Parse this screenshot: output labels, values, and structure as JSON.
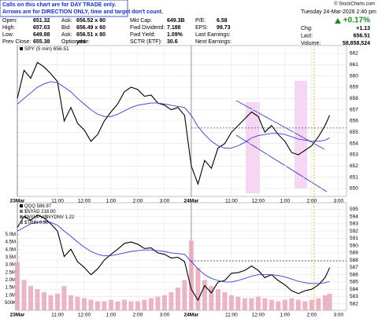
{
  "header": {
    "note": [
      "Calls on this chart are for DAY TRADE only.",
      "Arrows are for DIRECTION ONLY, time and target don't count."
    ],
    "copyright": "© StockCharts.com",
    "rows": [
      [
        [
          "Open:",
          "651.32"
        ],
        [
          "Ask:",
          "656.52 x 80"
        ],
        [
          "Mkt Cap:",
          "649.3B"
        ],
        [
          "P/E:",
          "6.58"
        ]
      ],
      [
        [
          "High:",
          "657.03"
        ],
        [
          "Bid:",
          "656.49 x 60"
        ],
        [
          "Fwd Dividend:",
          "7.188"
        ],
        [
          "EPS:",
          "99.73"
        ]
      ],
      [
        [
          "Low:",
          "649.88"
        ],
        [
          "Ask:",
          "656.51 x 80"
        ],
        [
          "Fwd Yield:",
          "1.09%"
        ],
        [
          "Last Earnings:"
        ]
      ],
      [
        [
          "Prev Close:",
          "655.38"
        ],
        [
          "Optionable:",
          "yes"
        ],
        [
          "SCTR (ETF):",
          "30.6"
        ],
        [
          "Next Earnings:"
        ]
      ]
    ],
    "date": "Tuesday  24-Mar-2026  2:40 pm",
    "change_pct": "+0.17%",
    "side": [
      [
        "Chg:",
        "+1.13"
      ],
      [
        "Last:",
        "656.51"
      ],
      [
        "Volume:",
        "58,858,524"
      ]
    ]
  },
  "chart_data": [
    {
      "type": "line",
      "title": "SPY (5 min) 656.51",
      "x": [
        0,
        0.25,
        0.5,
        0.75,
        1,
        1.25,
        1.5,
        1.75,
        2,
        2.25,
        2.5,
        2.75,
        3,
        3.25,
        3.5,
        3.75,
        4,
        4.25,
        4.5,
        4.75,
        5,
        5.25,
        5.5,
        5.75,
        6,
        6.25,
        6.5,
        6.75,
        7,
        7.25,
        7.5,
        7.75,
        8,
        8.25,
        8.5,
        8.75,
        9,
        9.25,
        9.5,
        9.75,
        10,
        10.25,
        10.5,
        10.75,
        11,
        11.25,
        11.5,
        11.67
      ],
      "xlim": [
        0,
        12.3
      ],
      "xticks": [
        {
          "value": 0,
          "label": "23Mar"
        },
        {
          "value": 1.5,
          "label": "11:00"
        },
        {
          "value": 2.5,
          "label": "12:00"
        },
        {
          "value": 3.5,
          "label": "1:00"
        },
        {
          "value": 4.5,
          "label": "2:00"
        },
        {
          "value": 5.5,
          "label": "3:00"
        },
        {
          "value": 6.5,
          "label": "24Mar"
        },
        {
          "value": 8,
          "label": "11:00"
        },
        {
          "value": 9,
          "label": "12:00"
        },
        {
          "value": 10,
          "label": "1:00"
        },
        {
          "value": 11,
          "label": "2:00"
        },
        {
          "value": 12,
          "label": "3:00"
        }
      ],
      "ylim": [
        649.3,
        662.7
      ],
      "yticks": [
        650,
        651,
        652,
        653,
        654,
        655,
        656,
        657,
        658,
        659,
        660,
        661,
        662
      ],
      "grid": true,
      "hlines": [
        655.38
      ],
      "series": [
        {
          "name": "SPY",
          "color": "#000000",
          "values": [
            658.0,
            660.5,
            659.8,
            661.2,
            660.8,
            660.2,
            659.5,
            656.0,
            657.2,
            655.8,
            655.2,
            654.2,
            654.8,
            656.0,
            656.8,
            657.5,
            658.6,
            659.0,
            658.8,
            658.2,
            658.3,
            657.6,
            657.4,
            657.0,
            657.2,
            656.5,
            652.0,
            650.4,
            652.5,
            651.8,
            653.6,
            654.0,
            655.0,
            655.6,
            656.2,
            656.8,
            656.4,
            655.0,
            655.6,
            654.8,
            654.2,
            653.2,
            653.0,
            653.4,
            653.8,
            654.6,
            655.6,
            656.51
          ]
        },
        {
          "color": "#3a3ad0",
          "values": [
            657.5,
            658,
            658.5,
            659,
            659.3,
            659.5,
            659.4,
            659,
            658.6,
            658,
            657.5,
            657,
            656.6,
            656.4,
            656.4,
            656.6,
            656.9,
            657.2,
            657.4,
            657.5,
            657.6,
            657.6,
            657.5,
            657.4,
            657.3,
            657.2,
            656.5,
            655.5,
            654.8,
            654.2,
            653.8,
            653.6,
            653.6,
            653.8,
            654.1,
            654.5,
            654.7,
            654.8,
            654.9,
            654.9,
            654.8,
            654.6,
            654.4,
            654.3,
            654.2,
            654.2,
            654.3,
            654.5
          ]
        }
      ]
    },
    {
      "type": "line",
      "legend": [
        "QQQ 586.97",
        "$NYAD 216.00",
        "$NYUPV/$NYDNV 1.22",
        "$TRIN 0.90"
      ],
      "x": [
        0,
        0.25,
        0.5,
        0.75,
        1,
        1.25,
        1.5,
        1.75,
        2,
        2.25,
        2.5,
        2.75,
        3,
        3.25,
        3.5,
        3.75,
        4,
        4.25,
        4.5,
        4.75,
        5,
        5.25,
        5.5,
        5.75,
        6,
        6.25,
        6.5,
        6.75,
        7,
        7.25,
        7.5,
        7.75,
        8,
        8.25,
        8.5,
        8.75,
        9,
        9.25,
        9.5,
        9.75,
        10,
        10.25,
        10.5,
        10.75,
        11,
        11.25,
        11.5,
        11.67
      ],
      "xlim": [
        0,
        12.3
      ],
      "xticks": [
        {
          "value": 0,
          "label": "23Mar"
        },
        {
          "value": 1.5,
          "label": "11:00"
        },
        {
          "value": 2.5,
          "label": "12:00"
        },
        {
          "value": 3.5,
          "label": "1:00"
        },
        {
          "value": 4.5,
          "label": "2:00"
        },
        {
          "value": 5.5,
          "label": "3:00"
        },
        {
          "value": 6.5,
          "label": "24Mar"
        },
        {
          "value": 8,
          "label": "11:00"
        },
        {
          "value": 9,
          "label": "12:00"
        },
        {
          "value": 10,
          "label": "1:00"
        },
        {
          "value": 11,
          "label": "2:00"
        },
        {
          "value": 12,
          "label": "3:00"
        }
      ],
      "ylim": [
        581.1,
        595.9
      ],
      "yticks": [
        582,
        583,
        584,
        585,
        586,
        587,
        588,
        589,
        590,
        591,
        592,
        593,
        594,
        595
      ],
      "grid": true,
      "hlines": [
        587.9
      ],
      "series": [
        {
          "name": "QQQ",
          "color": "#000000",
          "values": [
            592.5,
            594,
            593.5,
            594.2,
            593.8,
            593,
            592,
            588.5,
            589.5,
            587.8,
            587,
            586,
            586.8,
            588,
            588.8,
            589.5,
            590.3,
            590.5,
            590.2,
            589.6,
            589.7,
            589,
            588.8,
            588.3,
            588.4,
            587.8,
            584,
            582.5,
            584.5,
            583.5,
            585,
            585.2,
            586.2,
            586.3,
            586.6,
            587.2,
            586.6,
            585.6,
            586,
            585.2,
            584.6,
            583.8,
            583.4,
            583.8,
            584,
            584.6,
            585.6,
            586.97
          ]
        },
        {
          "color": "#3a3ad0",
          "values": [
            592,
            592.5,
            593,
            593.2,
            593.3,
            593.2,
            592.8,
            592,
            591.3,
            590.5,
            589.8,
            589.2,
            588.8,
            588.6,
            588.6,
            588.8,
            589,
            589.2,
            589.3,
            589.4,
            589.4,
            589.3,
            589.2,
            589,
            588.9,
            588.8,
            587.8,
            586.8,
            586,
            585.5,
            585.2,
            585,
            585,
            585.2,
            585.5,
            585.8,
            586,
            586,
            586,
            585.9,
            585.7,
            585.4,
            585.1,
            584.9,
            584.8,
            584.8,
            584.9,
            585.1
          ]
        }
      ],
      "volume": {
        "color": "#e8a8b8",
        "values": [
          3200000,
          2000000,
          1600000,
          1400000,
          1200000,
          1000000,
          1100000,
          1600000,
          1000000,
          900000,
          800000,
          700000,
          600000,
          600000,
          700000,
          600000,
          700000,
          600000,
          600000,
          700000,
          800000,
          900000,
          1000000,
          1200000,
          1500000,
          2000000,
          4600000,
          2800000,
          2000000,
          1600000,
          1400000,
          1200000,
          1000000,
          900000,
          800000,
          800000,
          900000,
          800000,
          700000,
          600000,
          700000,
          800000,
          700000,
          600000,
          700000,
          800000,
          1000000,
          1100000
        ],
        "ylim": [
          0,
          7100000
        ],
        "yticks": [
          {
            "value": 500000,
            "label": "500K"
          },
          {
            "value": 1000000,
            "label": "1.0M"
          },
          {
            "value": 1500000,
            "label": "1.5M"
          },
          {
            "value": 2000000,
            "label": "2.0M"
          },
          {
            "value": 2500000,
            "label": "2.5M"
          },
          {
            "value": 3000000,
            "label": "3.0M"
          },
          {
            "value": 3500000,
            "label": "3.5M"
          },
          {
            "value": 4000000,
            "label": "4.0M"
          },
          {
            "value": 4500000,
            "label": "4.5M"
          },
          {
            "value": 5000000,
            "label": "5.0M"
          }
        ]
      }
    }
  ]
}
